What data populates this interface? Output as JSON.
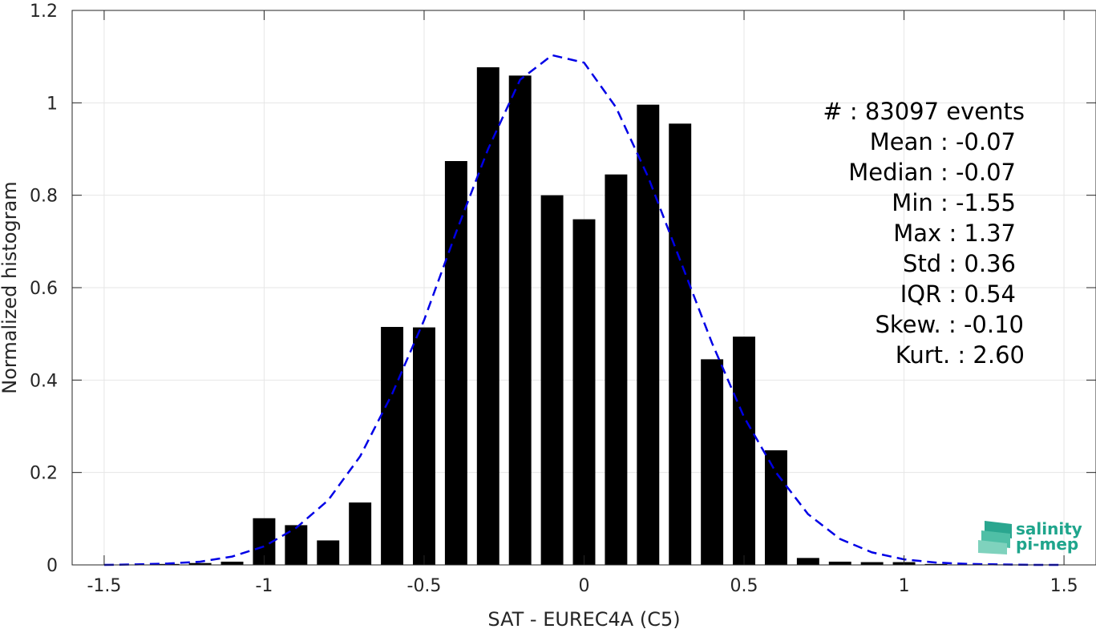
{
  "chart_data": {
    "type": "bar",
    "xlabel": "SAT - EUREC4A (C5)",
    "ylabel": "Normalized histogram",
    "xlim": [
      -1.6,
      1.6
    ],
    "ylim": [
      0,
      1.2
    ],
    "xticks": [
      -1.5,
      -1,
      -0.5,
      0,
      0.5,
      1,
      1.5
    ],
    "xtick_labels": [
      "-1.5",
      "-1",
      "-0.5",
      "0",
      "0.5",
      "1",
      "1.5"
    ],
    "yticks": [
      0,
      0.2,
      0.4,
      0.6,
      0.8,
      1,
      1.2
    ],
    "ytick_labels": [
      "0",
      "0.2",
      "0.4",
      "0.6",
      "0.8",
      "1",
      "1.2"
    ],
    "grid": true,
    "bar_color": "#000000",
    "bars": {
      "x": [
        -1.4,
        -1.3,
        -1.2,
        -1.1,
        -1.0,
        -0.9,
        -0.8,
        -0.7,
        -0.6,
        -0.5,
        -0.4,
        -0.3,
        -0.2,
        -0.1,
        0.0,
        0.1,
        0.2,
        0.3,
        0.4,
        0.5,
        0.6,
        0.7,
        0.8,
        0.9,
        1.0,
        1.1,
        1.2,
        1.3
      ],
      "values": [
        0.0,
        0.002,
        0.004,
        0.007,
        0.101,
        0.086,
        0.053,
        0.135,
        0.515,
        0.514,
        0.874,
        1.077,
        1.059,
        0.8,
        0.748,
        0.845,
        0.996,
        0.955,
        0.445,
        0.494,
        0.248,
        0.015,
        0.007,
        0.006,
        0.006,
        0.002,
        0.001,
        0.001
      ],
      "width": 0.07
    },
    "fit_curve": {
      "name": "",
      "style": "dashed",
      "color": "#0000e6",
      "x": [
        -1.5,
        -1.4,
        -1.3,
        -1.2,
        -1.1,
        -1.0,
        -0.9,
        -0.8,
        -0.7,
        -0.6,
        -0.5,
        -0.4,
        -0.3,
        -0.2,
        -0.1,
        0.0,
        0.1,
        0.2,
        0.3,
        0.4,
        0.5,
        0.6,
        0.7,
        0.8,
        0.9,
        1.0,
        1.1,
        1.2,
        1.3,
        1.4,
        1.5
      ],
      "y": [
        0.0,
        0.001,
        0.003,
        0.007,
        0.018,
        0.04,
        0.08,
        0.14,
        0.235,
        0.37,
        0.53,
        0.72,
        0.9,
        1.05,
        1.103,
        1.087,
        0.99,
        0.84,
        0.66,
        0.48,
        0.32,
        0.2,
        0.11,
        0.056,
        0.027,
        0.012,
        0.005,
        0.002,
        0.001,
        0.0,
        0.0
      ]
    },
    "stats": [
      {
        "label": "#  : 83097 events"
      },
      {
        "label": "Mean : -0.07"
      },
      {
        "label": "Median : -0.07"
      },
      {
        "label": "Min : -1.55"
      },
      {
        "label": "Max : 1.37"
      },
      {
        "label": "Std : 0.36"
      },
      {
        "label": "IQR : 0.54"
      },
      {
        "label": "Skew. : -0.10"
      },
      {
        "label": "Kurt. : 2.60"
      }
    ]
  },
  "logo": {
    "line1": "salinity",
    "line2": "pi-mep"
  }
}
